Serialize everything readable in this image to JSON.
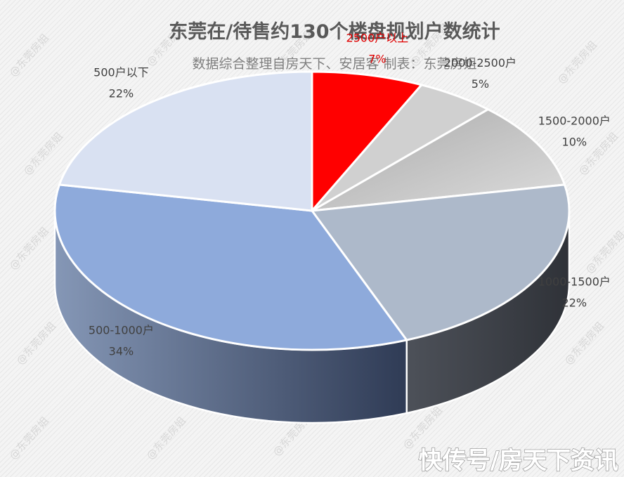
{
  "chart_data": {
    "type": "pie",
    "title": "东莞在/待售约130个楼盘规划户数统计",
    "subtitle": "数据综合整理自房天下、安居客  制表：东莞房姐",
    "slices": [
      {
        "label": "2500户以上",
        "value": 7,
        "pct_label": "7%",
        "color": "#ff0000",
        "label_color": "#e00000"
      },
      {
        "label": "2000-2500户",
        "value": 5,
        "pct_label": "5%",
        "color": "#d0d0d0",
        "label_color": "#404040"
      },
      {
        "label": "1500-2000户",
        "value": 10,
        "pct_label": "10%",
        "color": "#b9b9b9",
        "label_color": "#404040"
      },
      {
        "label": "1000-1500户",
        "value": 22,
        "pct_label": "22%",
        "color": "#adb9ca",
        "label_color": "#404040"
      },
      {
        "label": "500-1000户",
        "value": 34,
        "pct_label": "34%",
        "color": "#8eaadb",
        "label_color": "#404040"
      },
      {
        "label": "500户以下",
        "value": 22,
        "pct_label": "22%",
        "color": "#d9e1f2",
        "label_color": "#404040"
      }
    ]
  },
  "watermark": "@东莞房姐",
  "source_tag": "快传号/房天下资讯"
}
